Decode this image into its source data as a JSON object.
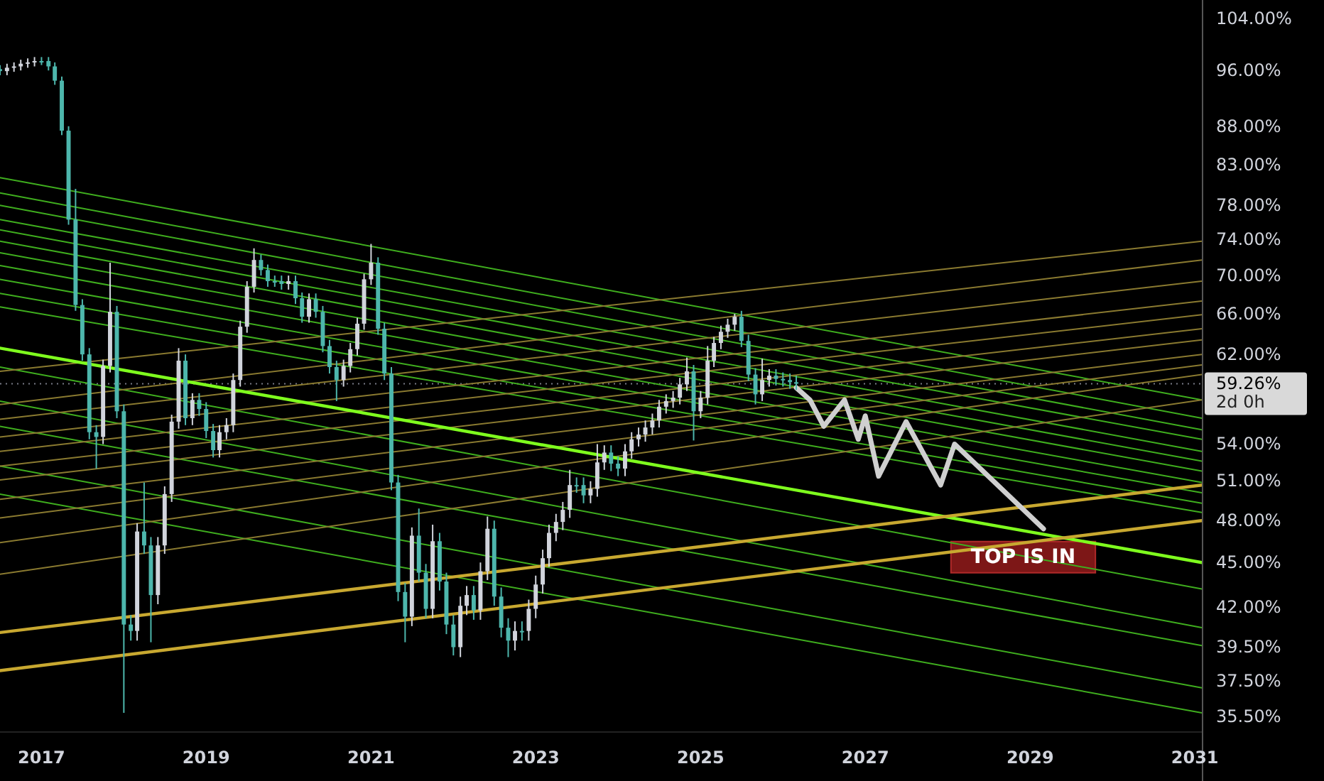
{
  "chart_data": {
    "type": "candlestick",
    "x": [
      "2016-07",
      "2016-08",
      "2016-09",
      "2016-10",
      "2016-11",
      "2016-12",
      "2017-01",
      "2017-02",
      "2017-03",
      "2017-04",
      "2017-05",
      "2017-06",
      "2017-07",
      "2017-08",
      "2017-09",
      "2017-10",
      "2017-11",
      "2017-12",
      "2018-01",
      "2018-02",
      "2018-03",
      "2018-04",
      "2018-05",
      "2018-06",
      "2018-07",
      "2018-08",
      "2018-09",
      "2018-10",
      "2018-11",
      "2018-12",
      "2019-01",
      "2019-02",
      "2019-03",
      "2019-04",
      "2019-05",
      "2019-06",
      "2019-07",
      "2019-08",
      "2019-09",
      "2019-10",
      "2019-11",
      "2019-12",
      "2020-01",
      "2020-02",
      "2020-03",
      "2020-04",
      "2020-05",
      "2020-06",
      "2020-07",
      "2020-08",
      "2020-09",
      "2020-10",
      "2020-11",
      "2020-12",
      "2021-01",
      "2021-02",
      "2021-03",
      "2021-04",
      "2021-05",
      "2021-06",
      "2021-07",
      "2021-08",
      "2021-09",
      "2021-10",
      "2021-11",
      "2021-12",
      "2022-01",
      "2022-02",
      "2022-03",
      "2022-04",
      "2022-05",
      "2022-06",
      "2022-07",
      "2022-08",
      "2022-09",
      "2022-10",
      "2022-11",
      "2022-12",
      "2023-01",
      "2023-02",
      "2023-03",
      "2023-04",
      "2023-05",
      "2023-06",
      "2023-07",
      "2023-08",
      "2023-09",
      "2023-10",
      "2023-11",
      "2023-12",
      "2024-01",
      "2024-02",
      "2024-03",
      "2024-04",
      "2024-05",
      "2024-06",
      "2024-07",
      "2024-08",
      "2024-09",
      "2024-10",
      "2024-11",
      "2024-12",
      "2025-01",
      "2025-02",
      "2025-03",
      "2025-04",
      "2025-05",
      "2025-06",
      "2025-07",
      "2025-08",
      "2025-09",
      "2025-10",
      "2025-11",
      "2025-12",
      "2026-01",
      "2026-02",
      "2026-03"
    ],
    "ohlc": [
      [
        96.2,
        96.8,
        95.3,
        95.9
      ],
      [
        95.9,
        97.0,
        95.3,
        96.4
      ],
      [
        96.4,
        97.2,
        95.8,
        96.6
      ],
      [
        96.6,
        97.6,
        96.0,
        97.0
      ],
      [
        97.0,
        97.8,
        96.4,
        97.2
      ],
      [
        97.2,
        98.0,
        96.6,
        97.4
      ],
      [
        97.4,
        98.0,
        96.8,
        97.4
      ],
      [
        97.4,
        98.0,
        96.0,
        96.6
      ],
      [
        96.6,
        97.2,
        93.9,
        94.5
      ],
      [
        94.5,
        95.1,
        86.9,
        87.5
      ],
      [
        87.5,
        88.1,
        75.7,
        76.3
      ],
      [
        76.3,
        80.0,
        66.3,
        66.9
      ],
      [
        66.9,
        67.5,
        61.4,
        62.0
      ],
      [
        62.0,
        62.6,
        54.4,
        55.0
      ],
      [
        55.0,
        55.6,
        52.0,
        54.6
      ],
      [
        54.6,
        61.5,
        54.0,
        60.9
      ],
      [
        60.9,
        71.4,
        60.3,
        66.2
      ],
      [
        66.2,
        66.8,
        56.2,
        56.8
      ],
      [
        56.8,
        57.4,
        35.7,
        40.9
      ],
      [
        40.9,
        41.5,
        39.9,
        40.5
      ],
      [
        40.5,
        47.8,
        39.9,
        47.2
      ],
      [
        47.2,
        50.9,
        45.6,
        46.2
      ],
      [
        46.2,
        46.8,
        39.8,
        42.8
      ],
      [
        42.8,
        46.8,
        42.2,
        46.2
      ],
      [
        46.2,
        50.6,
        45.6,
        50.0
      ],
      [
        50.0,
        56.5,
        49.4,
        55.9
      ],
      [
        55.9,
        62.6,
        55.3,
        61.4
      ],
      [
        61.4,
        62.0,
        55.6,
        56.2
      ],
      [
        56.2,
        58.4,
        55.6,
        57.8
      ],
      [
        57.8,
        58.4,
        56.4,
        57.0
      ],
      [
        57.0,
        57.6,
        54.5,
        55.1
      ],
      [
        55.1,
        55.7,
        52.9,
        53.5
      ],
      [
        53.5,
        55.6,
        52.9,
        55.0
      ],
      [
        55.0,
        56.2,
        54.4,
        55.6
      ],
      [
        55.6,
        60.2,
        55.0,
        59.6
      ],
      [
        59.6,
        65.3,
        59.0,
        64.7
      ],
      [
        64.7,
        69.4,
        64.1,
        68.8
      ],
      [
        68.8,
        73.0,
        68.2,
        71.7
      ],
      [
        71.7,
        72.3,
        70.0,
        70.6
      ],
      [
        70.6,
        71.2,
        68.8,
        69.4
      ],
      [
        69.4,
        70.0,
        68.8,
        69.4
      ],
      [
        69.4,
        70.0,
        68.5,
        69.1
      ],
      [
        69.1,
        70.0,
        68.5,
        69.4
      ],
      [
        69.4,
        70.0,
        67.0,
        67.6
      ],
      [
        67.6,
        68.2,
        65.1,
        65.7
      ],
      [
        65.7,
        68.1,
        65.1,
        67.5
      ],
      [
        67.5,
        68.1,
        65.6,
        66.2
      ],
      [
        66.2,
        66.8,
        62.2,
        62.8
      ],
      [
        62.8,
        63.4,
        60.2,
        60.8
      ],
      [
        60.8,
        61.4,
        57.7,
        59.6
      ],
      [
        59.6,
        61.5,
        59.0,
        60.9
      ],
      [
        60.9,
        63.1,
        60.3,
        62.5
      ],
      [
        62.5,
        65.6,
        61.9,
        65.0
      ],
      [
        65.0,
        70.2,
        64.4,
        69.6
      ],
      [
        69.6,
        73.5,
        69.0,
        71.4
      ],
      [
        71.4,
        72.0,
        63.9,
        64.5
      ],
      [
        64.5,
        65.1,
        59.6,
        60.2
      ],
      [
        60.2,
        60.8,
        50.3,
        50.9
      ],
      [
        50.9,
        51.5,
        42.4,
        43.0
      ],
      [
        43.0,
        43.6,
        39.8,
        41.4
      ],
      [
        41.4,
        47.5,
        40.8,
        46.9
      ],
      [
        46.9,
        48.9,
        43.7,
        44.3
      ],
      [
        44.3,
        44.9,
        41.3,
        41.9
      ],
      [
        41.9,
        47.7,
        41.3,
        46.5
      ],
      [
        46.5,
        47.1,
        43.1,
        43.7
      ],
      [
        43.7,
        44.3,
        40.3,
        40.9
      ],
      [
        40.9,
        41.5,
        39.0,
        39.5
      ],
      [
        39.5,
        42.7,
        38.9,
        42.1
      ],
      [
        42.1,
        43.4,
        41.5,
        42.8
      ],
      [
        42.8,
        43.4,
        41.2,
        41.8
      ],
      [
        41.8,
        45.0,
        41.2,
        44.4
      ],
      [
        44.4,
        48.3,
        43.8,
        47.4
      ],
      [
        47.4,
        48.0,
        42.1,
        42.7
      ],
      [
        42.7,
        43.3,
        40.1,
        40.7
      ],
      [
        40.7,
        41.3,
        38.9,
        39.9
      ],
      [
        39.9,
        41.1,
        39.3,
        40.5
      ],
      [
        40.5,
        41.1,
        39.9,
        40.5
      ],
      [
        40.5,
        42.5,
        39.9,
        41.9
      ],
      [
        41.9,
        44.1,
        41.3,
        43.5
      ],
      [
        43.5,
        45.9,
        42.9,
        45.3
      ],
      [
        45.3,
        47.7,
        44.7,
        47.1
      ],
      [
        47.1,
        48.5,
        46.5,
        47.9
      ],
      [
        47.9,
        49.4,
        47.3,
        48.8
      ],
      [
        48.8,
        51.9,
        48.2,
        50.7
      ],
      [
        50.7,
        51.3,
        50.1,
        50.7
      ],
      [
        50.7,
        51.3,
        49.3,
        49.9
      ],
      [
        49.9,
        51.0,
        49.3,
        50.4
      ],
      [
        50.4,
        54.0,
        49.8,
        52.5
      ],
      [
        52.5,
        53.9,
        51.9,
        53.3
      ],
      [
        53.3,
        53.9,
        51.8,
        52.4
      ],
      [
        52.4,
        53.0,
        51.4,
        52.0
      ],
      [
        52.0,
        54.0,
        51.4,
        53.4
      ],
      [
        53.4,
        55.0,
        52.8,
        54.4
      ],
      [
        54.4,
        55.4,
        53.8,
        54.8
      ],
      [
        54.8,
        56.0,
        54.2,
        55.4
      ],
      [
        55.4,
        56.6,
        54.8,
        56.0
      ],
      [
        56.0,
        57.8,
        55.4,
        57.2
      ],
      [
        57.2,
        58.3,
        56.6,
        57.7
      ],
      [
        57.7,
        58.6,
        57.1,
        58.0
      ],
      [
        58.0,
        59.8,
        57.4,
        59.2
      ],
      [
        59.2,
        61.7,
        58.6,
        60.4
      ],
      [
        60.4,
        61.0,
        54.3,
        56.8
      ],
      [
        56.8,
        58.6,
        56.2,
        58.0
      ],
      [
        58.0,
        62.8,
        57.4,
        61.4
      ],
      [
        61.4,
        63.7,
        60.8,
        63.1
      ],
      [
        63.1,
        64.8,
        62.5,
        64.2
      ],
      [
        64.2,
        65.5,
        63.6,
        64.9
      ],
      [
        64.9,
        66.0,
        64.3,
        65.7
      ],
      [
        65.7,
        66.3,
        62.7,
        63.3
      ],
      [
        63.3,
        63.9,
        59.5,
        60.1
      ],
      [
        60.1,
        60.7,
        57.4,
        58.3
      ],
      [
        58.3,
        61.6,
        57.7,
        59.6
      ],
      [
        59.6,
        60.6,
        59.0,
        60.0
      ],
      [
        60.0,
        60.6,
        59.1,
        59.7
      ],
      [
        59.7,
        60.3,
        59.0,
        59.6
      ],
      [
        59.6,
        60.2,
        58.8,
        59.4
      ],
      [
        59.4,
        60.0,
        58.7,
        59.26
      ]
    ],
    "colors": [
      "#4db6ac",
      "#d1d4dc",
      "#d1d4dc",
      "#d1d4dc",
      "#d1d4dc",
      "#d1d4dc",
      "#4db6ac",
      "#4db6ac",
      "#4db6ac",
      "#4db6ac",
      "#4db6ac",
      "#4db6ac",
      "#4db6ac",
      "#4db6ac",
      "#4db6ac",
      "#d1d4dc",
      "#d1d4dc",
      "#4db6ac",
      "#4db6ac",
      "#4db6ac",
      "#d1d4dc",
      "#4db6ac",
      "#4db6ac",
      "#d1d4dc",
      "#d1d4dc",
      "#d1d4dc",
      "#d1d4dc",
      "#4db6ac",
      "#d1d4dc",
      "#4db6ac",
      "#4db6ac",
      "#4db6ac",
      "#d1d4dc",
      "#d1d4dc",
      "#d1d4dc",
      "#d1d4dc",
      "#d1d4dc",
      "#d1d4dc",
      "#4db6ac",
      "#4db6ac",
      "#4db6ac",
      "#4db6ac",
      "#d1d4dc",
      "#4db6ac",
      "#4db6ac",
      "#d1d4dc",
      "#4db6ac",
      "#4db6ac",
      "#4db6ac",
      "#4db6ac",
      "#d1d4dc",
      "#d1d4dc",
      "#d1d4dc",
      "#d1d4dc",
      "#d1d4dc",
      "#4db6ac",
      "#4db6ac",
      "#4db6ac",
      "#4db6ac",
      "#4db6ac",
      "#d1d4dc",
      "#4db6ac",
      "#4db6ac",
      "#d1d4dc",
      "#4db6ac",
      "#4db6ac",
      "#4db6ac",
      "#d1d4dc",
      "#d1d4dc",
      "#4db6ac",
      "#d1d4dc",
      "#d1d4dc",
      "#4db6ac",
      "#4db6ac",
      "#4db6ac",
      "#d1d4dc",
      "#4db6ac",
      "#d1d4dc",
      "#d1d4dc",
      "#d1d4dc",
      "#d1d4dc",
      "#d1d4dc",
      "#d1d4dc",
      "#d1d4dc",
      "#4db6ac",
      "#4db6ac",
      "#d1d4dc",
      "#d1d4dc",
      "#d1d4dc",
      "#4db6ac",
      "#4db6ac",
      "#d1d4dc",
      "#d1d4dc",
      "#d1d4dc",
      "#d1d4dc",
      "#d1d4dc",
      "#d1d4dc",
      "#d1d4dc",
      "#d1d4dc",
      "#d1d4dc",
      "#d1d4dc",
      "#4db6ac",
      "#d1d4dc",
      "#d1d4dc",
      "#d1d4dc",
      "#d1d4dc",
      "#d1d4dc",
      "#d1d4dc",
      "#4db6ac",
      "#4db6ac",
      "#4db6ac",
      "#d1d4dc",
      "#d1d4dc",
      "#4db6ac",
      "#4db6ac",
      "#4db6ac",
      "#4db6ac"
    ],
    "series": [
      {
        "type": "line",
        "color": "#3fae1e",
        "x": [
          "2016-07",
          "2031-02"
        ],
        "values": [
          81.4,
          57.8
        ]
      },
      {
        "type": "line",
        "color": "#3fae1e",
        "x": [
          "2016-07",
          "2031-02"
        ],
        "values": [
          79.5,
          56.2
        ]
      },
      {
        "type": "line",
        "color": "#3fae1e",
        "x": [
          "2016-07",
          "2031-02"
        ],
        "values": [
          78.0,
          55.2
        ]
      },
      {
        "type": "line",
        "color": "#3fae1e",
        "x": [
          "2016-07",
          "2031-02"
        ],
        "values": [
          76.3,
          54.4
        ]
      },
      {
        "type": "line",
        "color": "#3fae1e",
        "x": [
          "2016-07",
          "2031-02"
        ],
        "values": [
          75.1,
          53.4
        ]
      },
      {
        "type": "line",
        "color": "#3fae1e",
        "x": [
          "2016-07",
          "2031-02"
        ],
        "values": [
          73.8,
          52.6
        ]
      },
      {
        "type": "line",
        "color": "#3fae1e",
        "x": [
          "2016-07",
          "2031-02"
        ],
        "values": [
          72.5,
          51.8
        ]
      },
      {
        "type": "line",
        "color": "#3fae1e",
        "x": [
          "2016-07",
          "2031-02"
        ],
        "values": [
          71.1,
          50.9
        ]
      },
      {
        "type": "line",
        "color": "#3fae1e",
        "x": [
          "2016-07",
          "2031-02"
        ],
        "values": [
          69.6,
          50.1
        ]
      },
      {
        "type": "line",
        "color": "#3fae1e",
        "x": [
          "2016-07",
          "2031-02"
        ],
        "values": [
          68.1,
          49.3
        ]
      },
      {
        "type": "line",
        "color": "#3fae1e",
        "x": [
          "2016-07",
          "2031-02"
        ],
        "values": [
          66.7,
          48.6
        ]
      },
      {
        "type": "line",
        "color": "#3fae1e",
        "x": [
          "2016-07",
          "2031-02"
        ],
        "values": [
          60.8,
          43.2
        ]
      },
      {
        "type": "line",
        "color": "#3fae1e",
        "x": [
          "2016-07",
          "2031-02"
        ],
        "values": [
          57.7,
          40.7
        ]
      },
      {
        "type": "line",
        "color": "#3fae1e",
        "x": [
          "2016-07",
          "2031-02"
        ],
        "values": [
          55.5,
          39.6
        ]
      },
      {
        "type": "line",
        "color": "#3fae1e",
        "x": [
          "2016-07",
          "2031-02"
        ],
        "values": [
          52.2,
          37.1
        ]
      },
      {
        "type": "line",
        "color": "#3fae1e",
        "x": [
          "2016-07",
          "2031-02"
        ],
        "values": [
          50.0,
          35.7
        ]
      },
      {
        "type": "line",
        "color": "#8a7a30",
        "x": [
          "2016-07",
          "2031-02"
        ],
        "values": [
          60.4,
          73.8
        ]
      },
      {
        "type": "line",
        "color": "#8a7a30",
        "x": [
          "2016-07",
          "2031-02"
        ],
        "values": [
          57.4,
          71.7
        ]
      },
      {
        "type": "line",
        "color": "#8a7a30",
        "x": [
          "2016-07",
          "2031-02"
        ],
        "values": [
          56.1,
          69.4
        ]
      },
      {
        "type": "line",
        "color": "#8a7a30",
        "x": [
          "2016-07",
          "2031-02"
        ],
        "values": [
          54.6,
          67.3
        ]
      },
      {
        "type": "line",
        "color": "#8a7a30",
        "x": [
          "2016-07",
          "2031-02"
        ],
        "values": [
          53.4,
          65.9
        ]
      },
      {
        "type": "line",
        "color": "#8a7a30",
        "x": [
          "2016-07",
          "2031-02"
        ],
        "values": [
          52.2,
          64.5
        ]
      },
      {
        "type": "line",
        "color": "#8a7a30",
        "x": [
          "2016-07",
          "2031-02"
        ],
        "values": [
          51.1,
          63.4
        ]
      },
      {
        "type": "line",
        "color": "#8a7a30",
        "x": [
          "2016-07",
          "2031-02"
        ],
        "values": [
          49.6,
          62.0
        ]
      },
      {
        "type": "line",
        "color": "#8a7a30",
        "x": [
          "2016-07",
          "2031-02"
        ],
        "values": [
          48.2,
          61.0
        ]
      },
      {
        "type": "line",
        "color": "#8a7a30",
        "x": [
          "2016-07",
          "2031-02"
        ],
        "values": [
          46.4,
          60.1
        ]
      },
      {
        "type": "line",
        "color": "#8a7a30",
        "x": [
          "2016-07",
          "2031-02"
        ],
        "values": [
          44.2,
          57.8
        ]
      },
      {
        "type": "line",
        "color": "#7fff1e",
        "x": [
          "2016-07",
          "2031-02"
        ],
        "values": [
          62.6,
          45.0
        ]
      },
      {
        "type": "line",
        "color": "#c8a830",
        "x": [
          "2016-07",
          "2031-02"
        ],
        "values": [
          40.4,
          50.7
        ]
      },
      {
        "type": "line",
        "color": "#c8a830",
        "x": [
          "2016-07",
          "2031-02"
        ],
        "values": [
          38.1,
          48.0
        ]
      },
      {
        "type": "line",
        "color": "#cfcfcf",
        "x": [
          "2026-03",
          "2026-05",
          "2026-07",
          "2026-10",
          "2026-12",
          "2027-01",
          "2027-03",
          "2027-07",
          "2027-12",
          "2028-02",
          "2029-03"
        ],
        "values": [
          58.9,
          57.8,
          55.5,
          57.8,
          54.4,
          56.4,
          51.4,
          55.9,
          50.7,
          54.0,
          47.4
        ]
      }
    ],
    "xlim": [
      "2016-07",
      "2031-02"
    ],
    "xticks": [
      {
        "value": "2017",
        "label": "2017"
      },
      {
        "value": "2019",
        "label": "2019"
      },
      {
        "value": "2021",
        "label": "2021"
      },
      {
        "value": "2023",
        "label": "2023"
      },
      {
        "value": "2025",
        "label": "2025"
      },
      {
        "value": "2027",
        "label": "2027"
      },
      {
        "value": "2029",
        "label": "2029"
      },
      {
        "value": "2031",
        "label": "2031"
      }
    ],
    "ylim": [
      34.7,
      107
    ],
    "log": "y",
    "yticks": [
      {
        "value": 104,
        "label": "104.00%"
      },
      {
        "value": 96,
        "label": "96.00%"
      },
      {
        "value": 88,
        "label": "88.00%"
      },
      {
        "value": 83,
        "label": "83.00%"
      },
      {
        "value": 78,
        "label": "78.00%"
      },
      {
        "value": 74,
        "label": "74.00%"
      },
      {
        "value": 70,
        "label": "70.00%"
      },
      {
        "value": 66,
        "label": "66.00%"
      },
      {
        "value": 62,
        "label": "62.00%"
      },
      {
        "value": 59.26,
        "label": "59.26%"
      },
      {
        "value": 54,
        "label": "54.00%"
      },
      {
        "value": 51,
        "label": "51.00%"
      },
      {
        "value": 48,
        "label": "48.00%"
      },
      {
        "value": 45,
        "label": "45.00%"
      },
      {
        "value": 42,
        "label": "42.00%"
      },
      {
        "value": 39.5,
        "label": "39.50%"
      },
      {
        "value": 37.5,
        "label": "37.50%"
      },
      {
        "value": 35.5,
        "label": "35.50%"
      }
    ],
    "ref_lines": [
      {
        "axis": "y",
        "value": 59.26,
        "label": "2d 0h",
        "color": "#787b86",
        "line_style": "dotted"
      }
    ],
    "annotations": [
      {
        "text": "TOP IS IN",
        "x": "2028-12",
        "y": 47.4
      }
    ]
  }
}
